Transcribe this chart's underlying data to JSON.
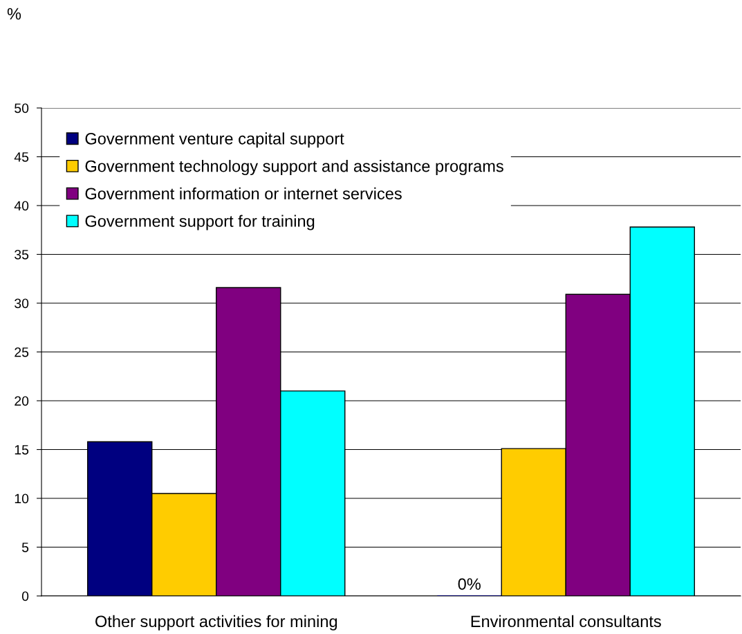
{
  "chart_data": {
    "type": "bar",
    "annotations": [
      "%"
    ],
    "categories": [
      "Other support activities for mining",
      "Environmental consultants"
    ],
    "series": [
      {
        "name": "Government venture capital support",
        "color": "#000080",
        "values": [
          15.8,
          0
        ],
        "value_labels": [
          null,
          "0%"
        ]
      },
      {
        "name": "Government technology support and assistance programs",
        "color": "#ffcc00",
        "values": [
          10.5,
          15.1
        ]
      },
      {
        "name": "Government information or internet services",
        "color": "#800080",
        "values": [
          31.6,
          30.9
        ]
      },
      {
        "name": "Government support for training",
        "color": "#00ffff",
        "values": [
          21.0,
          37.8
        ]
      }
    ],
    "ylim": [
      0,
      50
    ],
    "yticks": [
      0,
      5,
      10,
      15,
      20,
      25,
      30,
      35,
      40,
      45,
      50
    ],
    "grid": "y",
    "legend": "top left"
  }
}
